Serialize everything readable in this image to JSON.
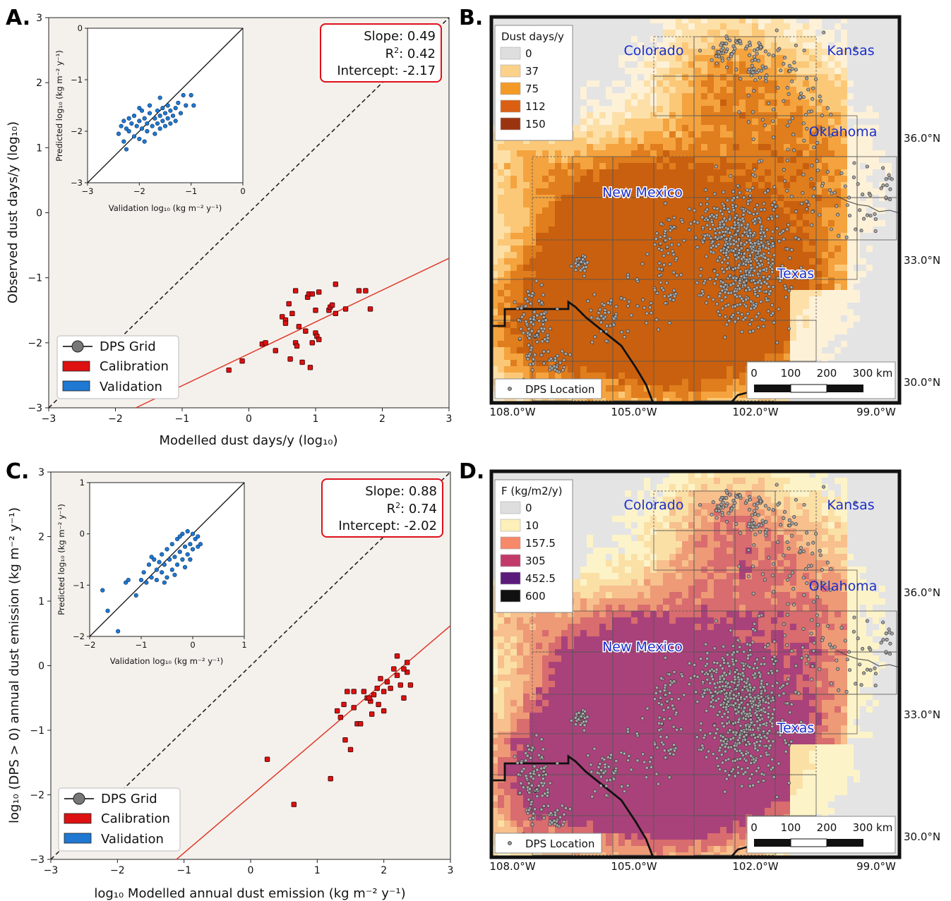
{
  "panels": {
    "A": {
      "letter": "A."
    },
    "B": {
      "letter": "B."
    },
    "C": {
      "letter": "C."
    },
    "D": {
      "letter": "D."
    }
  },
  "colors": {
    "plot_bg": "#f4f1ed",
    "calibration": "#dd1111",
    "validation": "#1f78d1",
    "fit_line": "#e03a2a",
    "stats_border": "#e0101a",
    "state_label": "#1a2fcc",
    "map_base": "#e4e4e4"
  },
  "chart_data": [
    {
      "id": "A",
      "type": "scatter",
      "xlabel": "Modelled dust days/y (log₁₀)",
      "ylabel": "Observed dust days/y (log₁₀)",
      "xlim": [
        -3,
        3
      ],
      "ylim": [
        -3,
        3
      ],
      "xticks": [
        "−3",
        "−2",
        "−1",
        "0",
        "1",
        "2",
        "3"
      ],
      "yticks": [
        "−3",
        "−2",
        "−1",
        "0",
        "1",
        "2",
        "3"
      ],
      "stats": {
        "slope": "Slope: 0.49",
        "r2_label": "R",
        "r2_sup": "2",
        "r2_value": ": 0.42",
        "intercept": "Intercept: -2.17"
      },
      "fit": {
        "slope": 0.49,
        "intercept": -2.17
      },
      "legend": [
        "DPS Grid",
        "Calibration",
        "Validation"
      ],
      "calibration_points": [
        [
          -0.3,
          -2.42
        ],
        [
          -0.1,
          -2.28
        ],
        [
          0.2,
          -2.02
        ],
        [
          0.25,
          -2.0
        ],
        [
          0.4,
          -2.12
        ],
        [
          0.5,
          -1.6
        ],
        [
          0.55,
          -1.65
        ],
        [
          0.55,
          -1.7
        ],
        [
          0.6,
          -1.4
        ],
        [
          0.62,
          -2.25
        ],
        [
          0.65,
          -1.55
        ],
        [
          0.7,
          -2.0
        ],
        [
          0.72,
          -2.05
        ],
        [
          0.75,
          -1.75
        ],
        [
          0.7,
          -1.2
        ],
        [
          0.8,
          -2.3
        ],
        [
          0.85,
          -1.82
        ],
        [
          0.88,
          -1.3
        ],
        [
          0.9,
          -1.25
        ],
        [
          0.92,
          -2.38
        ],
        [
          0.95,
          -2.0
        ],
        [
          1.0,
          -1.85
        ],
        [
          1.02,
          -1.9
        ],
        [
          1.0,
          -1.5
        ],
        [
          1.05,
          -1.95
        ],
        [
          1.05,
          -1.22
        ],
        [
          1.2,
          -1.5
        ],
        [
          1.22,
          -1.45
        ],
        [
          1.25,
          -1.42
        ],
        [
          1.3,
          -1.1
        ],
        [
          1.3,
          -1.55
        ],
        [
          1.45,
          -1.48
        ],
        [
          1.65,
          -1.2
        ],
        [
          1.75,
          -1.2
        ],
        [
          1.82,
          -1.48
        ],
        [
          0.95,
          -1.25
        ]
      ],
      "inset": {
        "xlabel": "Validation log₁₀ (kg m⁻² y⁻¹)",
        "ylabel": "Predicted log₁₀ (kg m⁻² y⁻¹)",
        "xlim": [
          -3,
          0
        ],
        "ylim": [
          -3,
          0
        ],
        "xticks": [
          "−3",
          "−2",
          "−1",
          "0"
        ],
        "yticks": [
          "−3",
          "−2",
          "−1",
          "0"
        ],
        "points": [
          [
            -2.4,
            -2.05
          ],
          [
            -2.35,
            -1.9
          ],
          [
            -2.3,
            -1.8
          ],
          [
            -2.3,
            -2.2
          ],
          [
            -2.25,
            -1.95
          ],
          [
            -2.2,
            -2.0
          ],
          [
            -2.2,
            -1.75
          ],
          [
            -2.15,
            -1.85
          ],
          [
            -2.1,
            -2.1
          ],
          [
            -2.1,
            -1.7
          ],
          [
            -2.05,
            -1.9
          ],
          [
            -2.0,
            -2.15
          ],
          [
            -2.0,
            -1.8
          ],
          [
            -1.95,
            -1.95
          ],
          [
            -1.95,
            -1.6
          ],
          [
            -1.9,
            -1.75
          ],
          [
            -1.85,
            -2.0
          ],
          [
            -1.85,
            -1.85
          ],
          [
            -1.8,
            -1.65
          ],
          [
            -1.8,
            -1.5
          ],
          [
            -1.75,
            -1.9
          ],
          [
            -1.7,
            -1.75
          ],
          [
            -1.7,
            -2.05
          ],
          [
            -1.65,
            -1.6
          ],
          [
            -1.65,
            -1.85
          ],
          [
            -1.6,
            -1.7
          ],
          [
            -1.6,
            -1.95
          ],
          [
            -1.55,
            -1.55
          ],
          [
            -1.55,
            -1.8
          ],
          [
            -1.5,
            -1.65
          ],
          [
            -1.5,
            -1.9
          ],
          [
            -1.45,
            -1.5
          ],
          [
            -1.45,
            -1.75
          ],
          [
            -1.4,
            -1.6
          ],
          [
            -1.4,
            -1.85
          ],
          [
            -1.35,
            -1.7
          ],
          [
            -1.3,
            -1.55
          ],
          [
            -1.3,
            -1.8
          ],
          [
            -1.25,
            -1.45
          ],
          [
            -1.2,
            -1.65
          ],
          [
            -1.15,
            -1.3
          ],
          [
            -1.1,
            -1.5
          ],
          [
            -1.0,
            -1.3
          ],
          [
            -0.95,
            -1.5
          ],
          [
            -2.0,
            -1.55
          ],
          [
            -1.9,
            -2.2
          ],
          [
            -2.25,
            -2.35
          ],
          [
            -1.6,
            -1.35
          ]
        ]
      }
    },
    {
      "id": "C",
      "type": "scatter",
      "xlabel": "log₁₀ Modelled annual dust emission  (kg m⁻² y⁻¹)",
      "ylabel": "log₁₀ (DPS > 0) annual dust emission (kg m⁻² y⁻¹)",
      "xlim": [
        -3,
        3
      ],
      "ylim": [
        -3,
        3
      ],
      "xticks": [
        "−3",
        "−2",
        "−1",
        "0",
        "1",
        "2",
        "3"
      ],
      "yticks": [
        "−3",
        "−2",
        "−1",
        "0",
        "1",
        "2",
        "3"
      ],
      "stats": {
        "slope": "Slope: 0.88",
        "r2_label": "R",
        "r2_sup": "2",
        "r2_value": ": 0.74",
        "intercept": "Intercept: -2.02"
      },
      "fit": {
        "slope": 0.88,
        "intercept": -2.02
      },
      "legend": [
        "DPS Grid",
        "Calibration",
        "Validation"
      ],
      "calibration_points": [
        [
          0.25,
          -1.45
        ],
        [
          0.65,
          -2.15
        ],
        [
          1.2,
          -1.75
        ],
        [
          1.3,
          -0.7
        ],
        [
          1.35,
          -0.8
        ],
        [
          1.4,
          -0.6
        ],
        [
          1.42,
          -1.15
        ],
        [
          1.45,
          -0.4
        ],
        [
          1.5,
          -1.3
        ],
        [
          1.55,
          -0.65
        ],
        [
          1.6,
          -0.9
        ],
        [
          1.65,
          -0.9
        ],
        [
          1.7,
          -0.4
        ],
        [
          1.75,
          -0.5
        ],
        [
          1.8,
          -0.55
        ],
        [
          1.82,
          -0.75
        ],
        [
          1.85,
          -0.45
        ],
        [
          1.9,
          -0.35
        ],
        [
          1.92,
          -0.6
        ],
        [
          1.95,
          -0.2
        ],
        [
          2.0,
          -0.4
        ],
        [
          2.05,
          -0.25
        ],
        [
          2.0,
          -0.7
        ],
        [
          2.1,
          -0.35
        ],
        [
          2.15,
          -0.05
        ],
        [
          2.2,
          -0.15
        ],
        [
          2.2,
          0.15
        ],
        [
          2.25,
          -0.3
        ],
        [
          2.3,
          -0.5
        ],
        [
          2.35,
          0.05
        ],
        [
          2.4,
          -0.3
        ],
        [
          2.35,
          -0.1
        ],
        [
          1.55,
          -0.4
        ],
        [
          1.78,
          -0.5
        ],
        [
          2.3,
          -0.05
        ]
      ],
      "inset": {
        "xlabel": "Validation log₁₀ (kg m⁻² y⁻¹)",
        "ylabel": "Predicted log₁₀ (kg m⁻² y⁻¹)",
        "xlim": [
          -2,
          1
        ],
        "ylim": [
          -2,
          1
        ],
        "xticks": [
          "−2",
          "−1",
          "0",
          "1"
        ],
        "yticks": [
          "−2",
          "−1",
          "0",
          "1"
        ],
        "points": [
          [
            -1.75,
            -1.1
          ],
          [
            -1.65,
            -1.5
          ],
          [
            -1.45,
            -1.9
          ],
          [
            -1.3,
            -0.95
          ],
          [
            -1.25,
            -0.9
          ],
          [
            -1.1,
            -1.2
          ],
          [
            -1.0,
            -0.9
          ],
          [
            -0.95,
            -0.75
          ],
          [
            -0.9,
            -0.95
          ],
          [
            -0.85,
            -0.6
          ],
          [
            -0.8,
            -0.85
          ],
          [
            -0.75,
            -0.5
          ],
          [
            -0.7,
            -0.7
          ],
          [
            -0.7,
            -0.9
          ],
          [
            -0.65,
            -0.55
          ],
          [
            -0.6,
            -0.75
          ],
          [
            -0.6,
            -0.4
          ],
          [
            -0.55,
            -0.6
          ],
          [
            -0.5,
            -0.85
          ],
          [
            -0.5,
            -0.3
          ],
          [
            -0.45,
            -0.5
          ],
          [
            -0.4,
            -0.7
          ],
          [
            -0.4,
            -0.2
          ],
          [
            -0.35,
            -0.45
          ],
          [
            -0.3,
            -0.6
          ],
          [
            -0.3,
            -0.1
          ],
          [
            -0.25,
            -0.35
          ],
          [
            -0.2,
            -0.5
          ],
          [
            -0.2,
            0.0
          ],
          [
            -0.15,
            -0.25
          ],
          [
            -0.1,
            -0.4
          ],
          [
            -0.1,
            0.05
          ],
          [
            -0.05,
            -0.2
          ],
          [
            0.0,
            -0.3
          ],
          [
            0.0,
            0.0
          ],
          [
            0.05,
            -0.1
          ],
          [
            0.1,
            -0.25
          ],
          [
            0.1,
            -0.05
          ],
          [
            0.15,
            -0.2
          ],
          [
            -0.55,
            -0.95
          ],
          [
            -0.35,
            -0.8
          ],
          [
            -0.15,
            -0.65
          ],
          [
            -0.8,
            -0.45
          ],
          [
            -0.25,
            -0.05
          ],
          [
            -0.05,
            -0.5
          ]
        ]
      }
    }
  ],
  "maps": [
    {
      "id": "B",
      "legend_title": "Dust days/y",
      "legend": [
        {
          "label": "0",
          "color": "#dedede"
        },
        {
          "label": "37",
          "color": "#fcd28a"
        },
        {
          "label": "75",
          "color": "#f39a26"
        },
        {
          "label": "112",
          "color": "#db5f12"
        },
        {
          "label": "150",
          "color": "#9a3410"
        }
      ],
      "palette": [
        "#fdf1d8",
        "#fde0a8",
        "#fbc878",
        "#f4a33e",
        "#e07d1c",
        "#c9600f"
      ],
      "states": [
        "Colorado",
        "Kansas",
        "Oklahoma",
        "New Mexico",
        "Texas"
      ],
      "lon_ticks": [
        "108.0°W",
        "105.0°W",
        "102.0°W",
        "99.0°W"
      ],
      "lat_ticks": [
        "36.0°N",
        "33.0°N",
        "30.0°N"
      ],
      "scale_labels": [
        "0",
        "100",
        "200",
        "300 km"
      ],
      "location_label": "DPS Location"
    },
    {
      "id": "D",
      "legend_title": "F (kg/m2/y)",
      "legend": [
        {
          "label": "0",
          "color": "#dedede"
        },
        {
          "label": "10",
          "color": "#fdf0b8"
        },
        {
          "label": "157.5",
          "color": "#f5896a"
        },
        {
          "label": "305",
          "color": "#c23a6a"
        },
        {
          "label": "452.5",
          "color": "#5a1b7a"
        },
        {
          "label": "600",
          "color": "#111111"
        }
      ],
      "palette": [
        "#fdf3c8",
        "#fbe0a6",
        "#f7c08c",
        "#ee9a76",
        "#d86c6e",
        "#a9427a"
      ],
      "states": [
        "Colorado",
        "Kansas",
        "Oklahoma",
        "New Mexico",
        "Texas"
      ],
      "lon_ticks": [
        "108.0°W",
        "105.0°W",
        "102.0°W",
        "99.0°W"
      ],
      "lat_ticks": [
        "36.0°N",
        "33.0°N",
        "30.0°N"
      ],
      "scale_labels": [
        "0",
        "100",
        "200",
        "300 km"
      ],
      "location_label": "DPS Location"
    }
  ]
}
